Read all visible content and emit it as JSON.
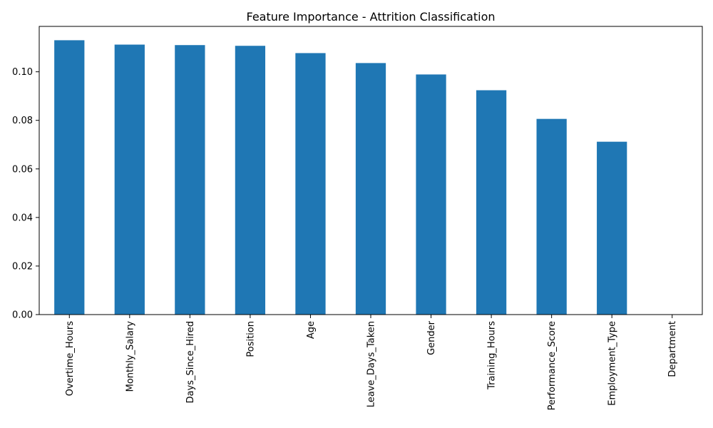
{
  "chart_data": {
    "type": "bar",
    "title": "Feature Importance - Attrition Classification",
    "xlabel": "",
    "ylabel": "",
    "categories": [
      "Overtime_Hours",
      "Monthly_Salary",
      "Days_Since_Hired",
      "Position",
      "Age",
      "Leave_Days_Taken",
      "Gender",
      "Training_Hours",
      "Performance_Score",
      "Employment_Type",
      "Department"
    ],
    "values": [
      0.113,
      0.1112,
      0.111,
      0.1107,
      0.1077,
      0.1036,
      0.0989,
      0.0924,
      0.0806,
      0.0712,
      0.0
    ],
    "ylim": [
      0,
      0.1187
    ],
    "yticks": [
      0.0,
      0.02,
      0.04,
      0.06,
      0.08,
      0.1
    ],
    "ytick_labels": [
      "0.00",
      "0.02",
      "0.04",
      "0.06",
      "0.08",
      "0.10"
    ],
    "bar_color": "#1f77b4",
    "grid": false,
    "legend": "none"
  }
}
